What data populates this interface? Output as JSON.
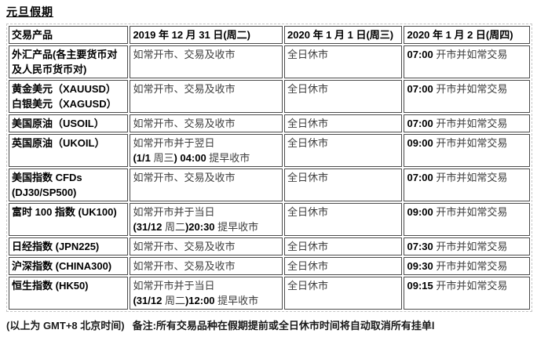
{
  "title": "元旦假期",
  "table": {
    "headers": [
      "交易产品",
      "2019 年 12 月 31 日(周二)",
      "2020 年 1 月 1 日(周三)",
      "2020 年 1 月 2 日(周四)"
    ],
    "rows": [
      {
        "cells": [
          [
            {
              "t": "外汇产品(各主要货币对\n及人民币货币对)",
              "b": true
            }
          ],
          [
            {
              "t": "如常开市、交易及收市",
              "b": false
            }
          ],
          [
            {
              "t": "全日休市",
              "b": false
            }
          ],
          [
            {
              "t": "07:00",
              "b": true
            },
            {
              "t": " 开市并如常交易",
              "b": false
            }
          ]
        ]
      },
      {
        "cells": [
          [
            {
              "t": "黄金美元（XAUUSD）\n白银美元（XAGUSD）",
              "b": true
            }
          ],
          [
            {
              "t": "如常开市、交易及收市",
              "b": false
            }
          ],
          [
            {
              "t": "全日休市",
              "b": false
            }
          ],
          [
            {
              "t": "07:00",
              "b": true
            },
            {
              "t": " 开市并如常交易",
              "b": false
            }
          ]
        ]
      },
      {
        "cells": [
          [
            {
              "t": "美国原油（USOIL）",
              "b": true
            }
          ],
          [
            {
              "t": "如常开市、交易及收市",
              "b": false
            }
          ],
          [
            {
              "t": "全日休市",
              "b": false
            }
          ],
          [
            {
              "t": "07:00",
              "b": true
            },
            {
              "t": " 开市并如常交易",
              "b": false
            }
          ]
        ]
      },
      {
        "cells": [
          [
            {
              "t": "英国原油（UKOIL）",
              "b": true
            }
          ],
          [
            {
              "t": "如常开市并于翌日\n",
              "b": false
            },
            {
              "t": "(1/1 ",
              "b": true
            },
            {
              "t": "周三",
              "b": false
            },
            {
              "t": ") 04:00 ",
              "b": true
            },
            {
              "t": "提早收市",
              "b": false
            }
          ],
          [
            {
              "t": "全日休市",
              "b": false
            }
          ],
          [
            {
              "t": "09:00",
              "b": true
            },
            {
              "t": " 开市并如常交易",
              "b": false
            }
          ]
        ]
      },
      {
        "cells": [
          [
            {
              "t": "美国指数 CFDs\n(DJ30/SP500)",
              "b": true
            }
          ],
          [
            {
              "t": "如常开市、交易及收市",
              "b": false
            }
          ],
          [
            {
              "t": "全日休市",
              "b": false
            }
          ],
          [
            {
              "t": "07:00",
              "b": true
            },
            {
              "t": " 开市并如常交易",
              "b": false
            }
          ]
        ]
      },
      {
        "cells": [
          [
            {
              "t": "富时 100 指数 (UK100)",
              "b": true
            }
          ],
          [
            {
              "t": "如常开市并于当日\n",
              "b": false
            },
            {
              "t": "(31/12 ",
              "b": true
            },
            {
              "t": "周二",
              "b": false
            },
            {
              "t": ")20:30 ",
              "b": true
            },
            {
              "t": "提早收市",
              "b": false
            }
          ],
          [
            {
              "t": "全日休市",
              "b": false
            }
          ],
          [
            {
              "t": "09:00",
              "b": true
            },
            {
              "t": " 开市并如常交易",
              "b": false
            }
          ]
        ]
      },
      {
        "cells": [
          [
            {
              "t": "日经指数 (JPN225)",
              "b": true
            }
          ],
          [
            {
              "t": "如常开市、交易及收市",
              "b": false
            }
          ],
          [
            {
              "t": "全日休市",
              "b": false
            }
          ],
          [
            {
              "t": "07:30",
              "b": true
            },
            {
              "t": " 开市并如常交易",
              "b": false
            }
          ]
        ]
      },
      {
        "cells": [
          [
            {
              "t": "沪深指数 (CHINA300)",
              "b": true
            }
          ],
          [
            {
              "t": "如常开市、交易及收市",
              "b": false
            }
          ],
          [
            {
              "t": "全日休市",
              "b": false
            }
          ],
          [
            {
              "t": "09:30",
              "b": true
            },
            {
              "t": " 开市并如常交易",
              "b": false
            }
          ]
        ]
      },
      {
        "cells": [
          [
            {
              "t": "恒生指数 (HK50)",
              "b": true
            }
          ],
          [
            {
              "t": "如常开市并于当日\n",
              "b": false
            },
            {
              "t": "(31/12 ",
              "b": true
            },
            {
              "t": "周二",
              "b": false
            },
            {
              "t": ")12:00 ",
              "b": true
            },
            {
              "t": "提早收市",
              "b": false
            }
          ],
          [
            {
              "t": "全日休市",
              "b": false
            }
          ],
          [
            {
              "t": "09:15",
              "b": true
            },
            {
              "t": " 开市并如常交易",
              "b": false
            }
          ]
        ]
      }
    ]
  },
  "footer": {
    "timezone": "(以上为 GMT+8 北京时间)",
    "note": "备注:所有交易品种在假期提前或全日休市时间将自动取消所有挂单l"
  },
  "colors": {
    "cell_border": "#4b4b4b",
    "outer_dashed_border": "#c6c6c6",
    "bold_text": "#000000",
    "regular_text": "#3e3e3e"
  }
}
